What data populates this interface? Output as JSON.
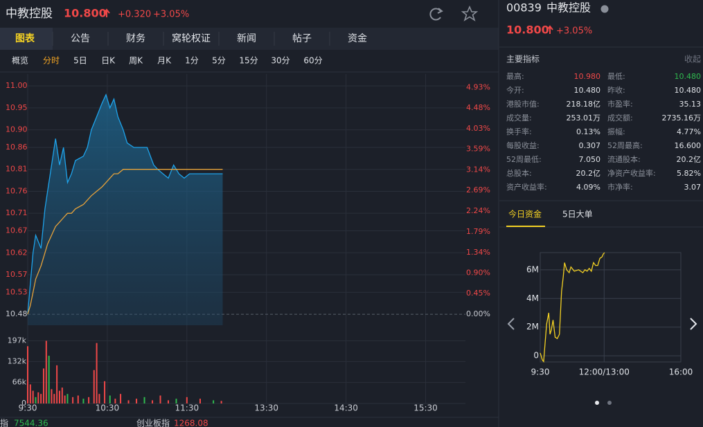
{
  "header": {
    "name": "中教控股",
    "price": "10.800",
    "change": "+0.320",
    "change_pct": "+3.05%"
  },
  "tabs": [
    "图表",
    "公告",
    "财务",
    "窝轮权证",
    "新闻",
    "帖子",
    "资金"
  ],
  "periods": [
    "概览",
    "分时",
    "5日",
    "日K",
    "周K",
    "月K",
    "1分",
    "5分",
    "15分",
    "30分",
    "60分"
  ],
  "intraday": {
    "type": "line",
    "x": [
      0,
      2,
      4,
      6,
      10,
      13,
      15,
      18,
      21,
      24,
      27,
      30,
      33,
      36,
      42,
      45,
      48,
      52,
      56,
      59,
      62,
      65,
      68,
      72,
      75,
      80,
      85,
      90,
      95,
      98,
      102,
      106,
      110,
      114,
      118,
      122,
      130,
      140,
      147
    ],
    "series": [
      {
        "color": "#1ea4ec",
        "values": [
          10.48,
          10.55,
          10.62,
          10.66,
          10.63,
          10.72,
          10.76,
          10.82,
          10.88,
          10.82,
          10.86,
          10.78,
          10.8,
          10.83,
          10.84,
          10.86,
          10.9,
          10.93,
          10.96,
          10.98,
          10.95,
          10.97,
          10.93,
          10.9,
          10.87,
          10.86,
          10.86,
          10.86,
          10.82,
          10.81,
          10.8,
          10.79,
          10.82,
          10.8,
          10.79,
          10.8,
          10.8,
          10.8,
          10.8
        ]
      },
      {
        "color": "#e8a33a",
        "values": [
          10.48,
          10.5,
          10.53,
          10.56,
          10.59,
          10.62,
          10.64,
          10.66,
          10.68,
          10.69,
          10.7,
          10.71,
          10.71,
          10.72,
          10.73,
          10.74,
          10.75,
          10.76,
          10.77,
          10.78,
          10.79,
          10.8,
          10.8,
          10.81,
          10.81,
          10.81,
          10.81,
          10.81,
          10.81,
          10.81,
          10.81,
          10.81,
          10.81,
          10.81,
          10.81,
          10.81,
          10.81,
          10.81,
          10.81
        ]
      }
    ],
    "xlim": [
      0,
      330
    ],
    "xticks": [
      {
        "value": 0,
        "label": "9:30"
      },
      {
        "value": 60,
        "label": "10:30"
      },
      {
        "value": 120,
        "label": "11:30"
      },
      {
        "value": 180,
        "label": "13:30"
      },
      {
        "value": 240,
        "label": "14:30"
      },
      {
        "value": 300,
        "label": "15:30"
      }
    ],
    "ylim": [
      10.455,
      11.027
    ],
    "yticks": [
      10.48,
      10.53,
      10.57,
      10.62,
      10.67,
      10.71,
      10.76,
      10.81,
      10.86,
      {
        "value": 10.9,
        "label": "10.90"
      },
      10.95,
      {
        "value": 11,
        "label": "11.00"
      }
    ],
    "y2lim": [
      -0.239,
      5.22
    ],
    "y2ticks": [
      {
        "value": 0,
        "label": "0.00%"
      },
      {
        "value": 0.45,
        "label": "0.45%"
      },
      {
        "value": 0.9,
        "label": "0.90%"
      },
      {
        "value": 1.34,
        "label": "1.34%"
      },
      {
        "value": 1.79,
        "label": "1.79%"
      },
      {
        "value": 2.24,
        "label": "2.24%"
      },
      {
        "value": 2.69,
        "label": "2.69%"
      },
      {
        "value": 3.14,
        "label": "3.14%"
      },
      {
        "value": 3.59,
        "label": "3.59%"
      },
      {
        "value": 4.03,
        "label": "4.03%"
      },
      {
        "value": 4.48,
        "label": "4.48%"
      },
      {
        "value": 4.93,
        "label": "4.93%"
      }
    ]
  },
  "volume": {
    "type": "bar",
    "x": [
      0,
      2,
      4,
      6,
      8,
      10,
      12,
      14,
      16,
      18,
      20,
      22,
      24,
      26,
      28,
      30,
      34,
      38,
      42,
      46,
      50,
      52,
      54,
      58,
      62,
      66,
      70,
      76,
      82,
      88,
      94,
      100,
      106,
      112,
      120,
      130,
      140,
      146
    ],
    "values": [
      180000,
      60000,
      40000,
      20000,
      35000,
      30000,
      110000,
      197000,
      150000,
      45000,
      30000,
      120000,
      40000,
      50000,
      25000,
      30000,
      20000,
      25000,
      15000,
      20000,
      105000,
      190000,
      30000,
      70000,
      25000,
      15000,
      30000,
      10000,
      15000,
      20000,
      10000,
      25000,
      10000,
      15000,
      20000,
      15000,
      10000,
      8000
    ],
    "colors": [
      "#f04848",
      "#f04848",
      "#f04848",
      "#2fba4f",
      "#f04848",
      "#f04848",
      "#f04848",
      "#f04848",
      "#2fba4f",
      "#f04848",
      "#f04848",
      "#f04848",
      "#f04848",
      "#f04848",
      "#f04848",
      "#2fba4f",
      "#f04848",
      "#f04848",
      "#2fba4f",
      "#f04848",
      "#f04848",
      "#f04848",
      "#f04848",
      "#f04848",
      "#2fba4f",
      "#f04848",
      "#f04848",
      "#f04848",
      "#f04848",
      "#2fba4f",
      "#f04848",
      "#f04848",
      "#f04848",
      "#2fba4f",
      "#f04848",
      "#f04848",
      "#2fba4f",
      "#f04848"
    ],
    "ylim": [
      0,
      211000
    ],
    "yticks": [
      0,
      {
        "value": 66000,
        "label": "66k"
      },
      {
        "value": 132000,
        "label": "132k"
      },
      {
        "value": 197000,
        "label": "197k"
      }
    ]
  },
  "side": {
    "code": "00839",
    "name": "中教控股",
    "price": "10.800",
    "change_pct": "+3.05%"
  },
  "metrics": {
    "title": "主要指标",
    "toggle": "收起",
    "rows": [
      [
        "最高:",
        "10.980",
        "最低:",
        "10.480"
      ],
      [
        "今开:",
        "10.480",
        "昨收:",
        "10.480"
      ],
      [
        "港股市值:",
        "218.18亿",
        "市盈率:",
        "35.13"
      ],
      [
        "成交量:",
        "253.01万",
        "成交额:",
        "2735.16万"
      ],
      [
        "换手率:",
        "0.13%",
        "振幅:",
        "4.77%"
      ],
      [
        "每股收益:",
        "0.307",
        "52周最高:",
        "16.600"
      ],
      [
        "52周最低:",
        "7.050",
        "流通股本:",
        "20.2亿"
      ],
      [
        "总股本:",
        "20.2亿",
        "净资产收益率:",
        "5.82%"
      ],
      [
        "资产收益率:",
        "4.09%",
        "市净率:",
        "3.07"
      ]
    ]
  },
  "fund_tabs": [
    "今日资金",
    "5日大单"
  ],
  "fund_chart": {
    "type": "line",
    "color": "#f5d223",
    "x": [
      0,
      5,
      8,
      15,
      20,
      23,
      26,
      30,
      35,
      40,
      45,
      50,
      54,
      57,
      62,
      68,
      72,
      80,
      90,
      100,
      105,
      110,
      115,
      120,
      125,
      130,
      135,
      140,
      145,
      148,
      151
    ],
    "values": [
      200000,
      -300000,
      -400000,
      2200000,
      3000000,
      1500000,
      1800000,
      2500000,
      1300000,
      1200000,
      1500000,
      4500000,
      5500000,
      6500000,
      6000000,
      5800000,
      6200000,
      5900000,
      6000000,
      5800000,
      6000000,
      5900000,
      6100000,
      5900000,
      6500000,
      6300000,
      6300000,
      6800000,
      6900000,
      7100000,
      7200000
    ],
    "xlim": [
      0,
      330
    ],
    "xticks": [
      {
        "value": 0,
        "label": "9:30"
      },
      {
        "value": 150,
        "label": "12:00/13:00"
      },
      {
        "value": 330,
        "label": "16:00"
      }
    ],
    "ylim": [
      -430000,
      7200000
    ],
    "yticks": [
      0,
      {
        "value": 2000000,
        "label": "2M"
      },
      {
        "value": 4000000,
        "label": "4M"
      },
      {
        "value": 6000000,
        "label": "6M"
      }
    ]
  },
  "footer": {
    "indices": [
      {
        "name": "指",
        "value": "7544.36"
      },
      {
        "name": "创业板指",
        "value": "1268.08"
      }
    ]
  }
}
